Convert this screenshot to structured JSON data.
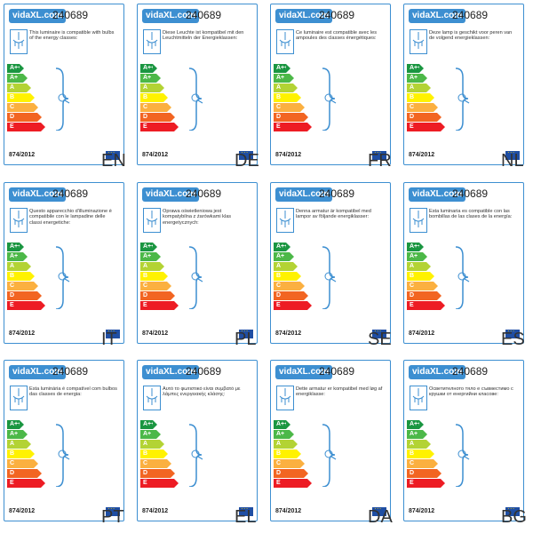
{
  "colors": {
    "card_border": "#3d8fd1",
    "brand_bg": "#3d8fd1",
    "eu_flag": "#1f4ea3",
    "classes": {
      "A++": "#1a9641",
      "A+": "#4cb848",
      "A": "#b3d334",
      "B": "#fff200",
      "C": "#fbb040",
      "D": "#f26522",
      "E": "#ed1c24"
    }
  },
  "energy_classes": [
    "A++",
    "A+",
    "A",
    "B",
    "C",
    "D",
    "E"
  ],
  "labels": [
    {
      "brand": "vidaXL.com",
      "model": "240689",
      "lang": "EN",
      "regulation": "874/2012",
      "description": "This luminaire is compatible with bulbs of the energy classes:"
    },
    {
      "brand": "vidaXL.com",
      "model": "240689",
      "lang": "DE",
      "regulation": "874/2012",
      "description": "Diese Leuchte ist kompatibel mit den Leuchtmitteln der Energieklassen:"
    },
    {
      "brand": "vidaXL.com",
      "model": "240689",
      "lang": "FR",
      "regulation": "874/2012",
      "description": "Ce luminaire est compatible avec les ampoules des classes énergétiques:"
    },
    {
      "brand": "vidaXL.com",
      "model": "240689",
      "lang": "NL",
      "regulation": "874/2012",
      "description": "Deze lamp is geschikt voor peren van de volgend energieklassen:"
    },
    {
      "brand": "vidaXL.com",
      "model": "240689",
      "lang": "IT",
      "regulation": "874/2012",
      "description": "Questo apparecchio d'illuminazione è compatibile con le lampadine delle classi energetiche:"
    },
    {
      "brand": "vidaXL.com",
      "model": "240689",
      "lang": "PL",
      "regulation": "874/2012",
      "description": "Oprawa oświetleniowa jest kompatybilna z żarówkami klas energetycznych:"
    },
    {
      "brand": "vidaXL.com",
      "model": "240689",
      "lang": "SE",
      "regulation": "874/2012",
      "description": "Denna armatur är kompatibel med lampor av följande energiklasser:"
    },
    {
      "brand": "vidaXL.com",
      "model": "240689",
      "lang": "ES",
      "regulation": "874/2012",
      "description": "Esta luminaria es compatible con las bombillas de las clases de la energía:"
    },
    {
      "brand": "vidaXL.com",
      "model": "240689",
      "lang": "PT",
      "regulation": "874/2012",
      "description": "Esta luminária é compatível com bulbos das classes de energia:"
    },
    {
      "brand": "vidaXL.com",
      "model": "240689",
      "lang": "EL",
      "regulation": "874/2012",
      "description": "Αυτό το φωτιστικό είναι συμβατό με λάμπες ενεργειακής κλάσης:"
    },
    {
      "brand": "vidaXL.com",
      "model": "240689",
      "lang": "DA",
      "regulation": "874/2012",
      "description": "Dette armatur er kompatibel med løg af energiklasse:"
    },
    {
      "brand": "vidaXL.com",
      "model": "240689",
      "lang": "BG",
      "regulation": "874/2012",
      "description": "Осветителното тяло е съвместимо с крушки от енергийни класове:"
    }
  ]
}
